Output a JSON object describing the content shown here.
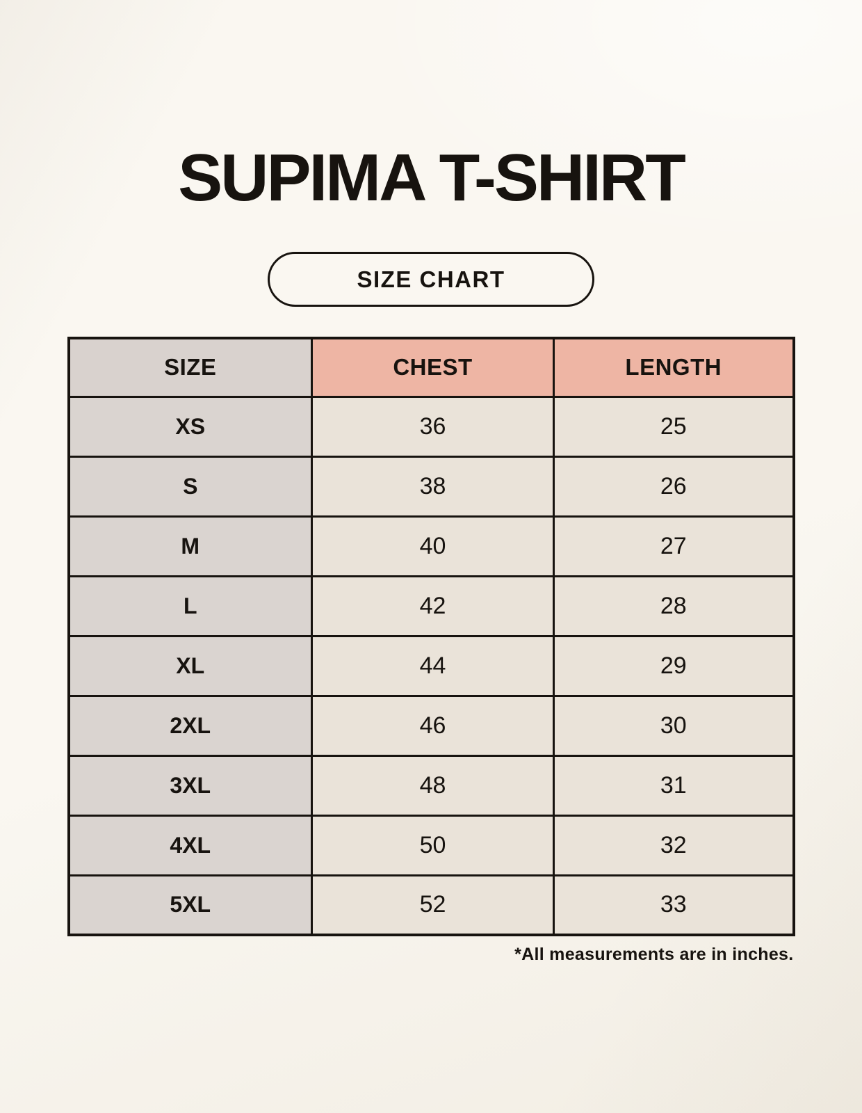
{
  "page": {
    "title": "SUPIMA T-SHIRT",
    "button_label": "SIZE CHART",
    "footnote": "*All measurements are in inches."
  },
  "table": {
    "columns": [
      "SIZE",
      "CHEST",
      "LENGTH"
    ],
    "rows": [
      {
        "size": "XS",
        "chest": "36",
        "length": "25"
      },
      {
        "size": "S",
        "chest": "38",
        "length": "26"
      },
      {
        "size": "M",
        "chest": "40",
        "length": "27"
      },
      {
        "size": "L",
        "chest": "42",
        "length": "28"
      },
      {
        "size": "XL",
        "chest": "44",
        "length": "29"
      },
      {
        "size": "2XL",
        "chest": "46",
        "length": "30"
      },
      {
        "size": "3XL",
        "chest": "48",
        "length": "31"
      },
      {
        "size": "4XL",
        "chest": "50",
        "length": "32"
      },
      {
        "size": "5XL",
        "chest": "52",
        "length": "33"
      }
    ],
    "units_note": "inches"
  },
  "colors": {
    "background": "#f7f3ea",
    "header_size_bg": "#d9d2ce",
    "header_measure_bg": "#eeb5a4",
    "size_col_bg": "#dad4d0",
    "data_cell_bg": "#eae3d9",
    "border": "#17130f",
    "text": "#17130f"
  }
}
